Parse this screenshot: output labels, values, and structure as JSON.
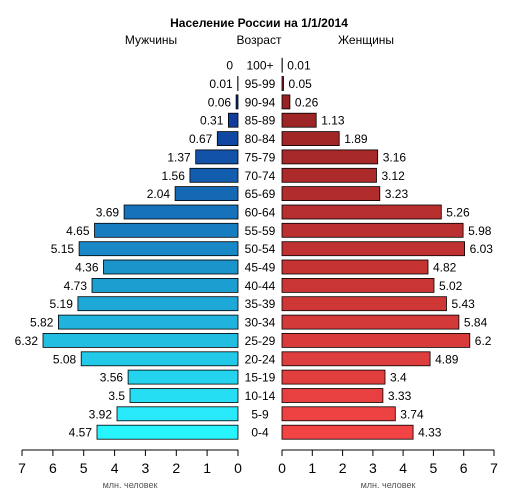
{
  "chart_data": {
    "type": "bar",
    "title": "Население России на 1/1/2014",
    "left_label": "Мужчины",
    "center_label": "Возраст",
    "right_label": "Женщины",
    "unit_label": "млн. человек",
    "xlim": [
      0,
      7
    ],
    "ticks": [
      "0",
      "1",
      "2",
      "3",
      "4",
      "5",
      "6",
      "7"
    ],
    "categories": [
      "100+",
      "95-99",
      "90-94",
      "85-89",
      "80-84",
      "75-79",
      "70-74",
      "65-69",
      "60-64",
      "55-59",
      "50-54",
      "45-49",
      "40-44",
      "35-39",
      "30-34",
      "25-29",
      "20-24",
      "15-19",
      "10-14",
      "5-9",
      "0-4"
    ],
    "series": [
      {
        "name": "Мужчины",
        "values": [
          0,
          0.01,
          0.06,
          0.31,
          0.67,
          1.37,
          1.56,
          2.04,
          3.69,
          4.65,
          5.15,
          4.36,
          4.73,
          5.19,
          5.82,
          6.32,
          5.08,
          3.56,
          3.5,
          3.92,
          4.57
        ],
        "labels": [
          "0",
          "0.01",
          "0.06",
          "0.31",
          "0.67",
          "1.37",
          "1.56",
          "2.04",
          "3.69",
          "4.65",
          "5.15",
          "4.36",
          "4.73",
          "5.19",
          "5.82",
          "6.32",
          "5.08",
          "3.56",
          "3.5",
          "3.92",
          "4.57"
        ]
      },
      {
        "name": "Женщины",
        "values": [
          0.01,
          0.05,
          0.26,
          1.13,
          1.89,
          3.16,
          3.12,
          3.23,
          5.26,
          5.98,
          6.03,
          4.82,
          5.02,
          5.43,
          5.84,
          6.2,
          4.89,
          3.4,
          3.33,
          3.74,
          4.33
        ],
        "labels": [
          "0.01",
          "0.05",
          "0.26",
          "1.13",
          "1.89",
          "3.16",
          "3.12",
          "3.23",
          "5.26",
          "5.98",
          "6.03",
          "4.82",
          "5.02",
          "5.43",
          "5.84",
          "6.2",
          "4.89",
          "3.4",
          "3.33",
          "3.74",
          "4.33"
        ]
      }
    ],
    "colors": {
      "male_top": "#0a1c8c",
      "male_bottom": "#28f4ff",
      "female_top": "#8e1f1f",
      "female_bottom": "#f24444"
    }
  }
}
